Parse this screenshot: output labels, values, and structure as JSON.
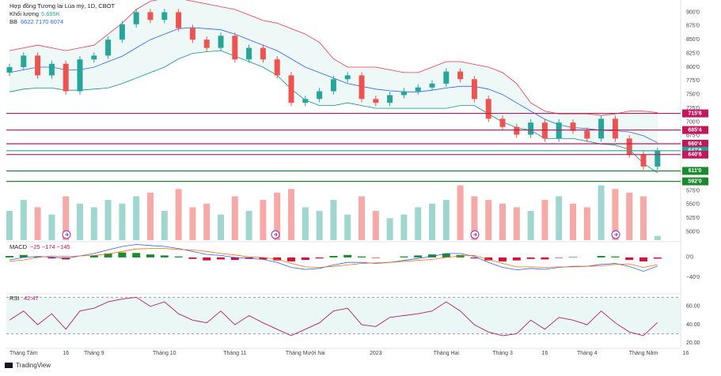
{
  "brand": "TradingView",
  "chart_data": [
    {
      "type": "candlestick",
      "title": "Hợp đồng Tương lai Lúa mỳ, 1D, CBOT",
      "bb_label": "BB",
      "bb_text": "6622 7170 6074",
      "up_color": "#26a69a",
      "down_color": "#ef5350",
      "categories": [
        null,
        "Tháng Tám",
        null,
        null,
        "16",
        null,
        "Tháng 9",
        null,
        null,
        null,
        null,
        "Tháng 10",
        null,
        null,
        null,
        null,
        "Tháng 11",
        null,
        null,
        null,
        null,
        "Tháng Mười hai",
        null,
        null,
        null,
        null,
        "2023",
        null,
        null,
        null,
        null,
        "Tháng Hai",
        null,
        null,
        null,
        "Tháng 3",
        null,
        null,
        "16",
        null,
        null,
        "Tháng 4",
        null,
        null,
        null,
        "Tháng Năm",
        null,
        null,
        "16",
        null
      ],
      "open": [
        790,
        800,
        821,
        785,
        806,
        756,
        814,
        821,
        850,
        878,
        900,
        886,
        900,
        871,
        850,
        835,
        857,
        814,
        835,
        814,
        785,
        735,
        742,
        756,
        778,
        785,
        742,
        735,
        749,
        756,
        763,
        770,
        792,
        778,
        742,
        706,
        691,
        677,
        699,
        670,
        699,
        684,
        670,
        706,
        670,
        641,
        619,
        null,
        null,
        null
      ],
      "high": [
        806,
        827,
        827,
        812,
        812,
        820,
        827,
        856,
        884,
        906,
        906,
        906,
        906,
        877,
        856,
        863,
        863,
        841,
        841,
        820,
        791,
        748,
        762,
        784,
        791,
        791,
        748,
        755,
        762,
        769,
        776,
        798,
        798,
        784,
        748,
        712,
        697,
        705,
        705,
        705,
        705,
        690,
        712,
        712,
        676,
        647,
        653.75,
        null,
        null,
        null
      ],
      "low": [
        784,
        794,
        779,
        779,
        750,
        750,
        808,
        815,
        844,
        872,
        880,
        880,
        865,
        844,
        829,
        829,
        808,
        808,
        808,
        779,
        729,
        729,
        736,
        750,
        772,
        736,
        729,
        729,
        743,
        750,
        757,
        764,
        772,
        736,
        700,
        685,
        671,
        671,
        664,
        664,
        678,
        664,
        664,
        664,
        635,
        613,
        613,
        null,
        null,
        null
      ],
      "close": [
        800,
        821,
        785,
        806,
        756,
        814,
        821,
        850,
        878,
        900,
        886,
        900,
        871,
        850,
        835,
        857,
        814,
        835,
        814,
        785,
        735,
        742,
        756,
        778,
        785,
        742,
        735,
        749,
        756,
        763,
        770,
        792,
        778,
        742,
        706,
        691,
        677,
        699,
        670,
        699,
        684,
        670,
        706,
        670,
        641,
        619,
        647.75,
        null,
        null,
        null
      ],
      "bb_upper": [
        830,
        835,
        840,
        835,
        830,
        835,
        840,
        860,
        880,
        905,
        920,
        925,
        925,
        920,
        915,
        910,
        905,
        895,
        885,
        880,
        870,
        860,
        845,
        815,
        800,
        800,
        800,
        795,
        790,
        790,
        800,
        810,
        810,
        805,
        800,
        790,
        770,
        735,
        720,
        715,
        715,
        715,
        712,
        715,
        720,
        720,
        717,
        null,
        null,
        null
      ],
      "bb_basis": [
        790,
        795,
        800,
        800,
        795,
        795,
        800,
        810,
        820,
        835,
        850,
        860,
        870,
        872,
        870,
        868,
        860,
        850,
        840,
        830,
        815,
        800,
        790,
        780,
        770,
        765,
        760,
        757,
        755,
        755,
        758,
        762,
        765,
        765,
        760,
        750,
        735,
        720,
        705,
        695,
        690,
        688,
        685,
        684,
        682,
        675,
        662.25,
        null,
        null,
        null
      ],
      "bb_lower": [
        755,
        760,
        762,
        762,
        758,
        758,
        760,
        762,
        770,
        780,
        790,
        800,
        815,
        825,
        828,
        830,
        820,
        810,
        800,
        785,
        760,
        740,
        730,
        730,
        735,
        730,
        725,
        725,
        725,
        725,
        725,
        725,
        730,
        730,
        715,
        700,
        690,
        685,
        670,
        670,
        670,
        665,
        660,
        658,
        650,
        625,
        607.5,
        null,
        null,
        null
      ],
      "bb_colors": {
        "upper": "#f23645",
        "basis": "#2962ff",
        "lower": "#089981",
        "fill": "#e3f4f1"
      },
      "ylim": [
        485,
        915
      ],
      "yticks": [
        {
          "value": 900,
          "label": "900'0"
        },
        {
          "value": 875,
          "label": "875'0"
        },
        {
          "value": 850,
          "label": "850'0"
        },
        {
          "value": 825,
          "label": "825'0"
        },
        {
          "value": 800,
          "label": "800'0"
        },
        {
          "value": 775,
          "label": "775'0"
        },
        {
          "value": 750,
          "label": "750'0"
        },
        {
          "value": 725,
          "label": "725'0"
        },
        {
          "value": 700,
          "label": "700'0"
        },
        {
          "value": 675,
          "label": "675'0"
        },
        {
          "value": 575,
          "label": "575'0"
        },
        {
          "value": 550,
          "label": "550'0"
        },
        {
          "value": 525,
          "label": "525'0"
        },
        {
          "value": 500,
          "label": "500'0"
        }
      ],
      "levels": [
        {
          "value": 715.75,
          "label": "715'6",
          "color": "#c2185b"
        },
        {
          "value": 685.5,
          "label": "685'4",
          "color": "#c2185b"
        },
        {
          "value": 660.5,
          "label": "660'4",
          "color": "#c2185b"
        },
        {
          "value": 647.75,
          "label": "647'6",
          "color": "#26a69a"
        },
        {
          "value": 640.75,
          "label": "640'6",
          "color": "#c2185b"
        },
        {
          "value": 611,
          "label": "611'0",
          "color": "#1b8a2e"
        },
        {
          "value": 592,
          "label": "592'0",
          "color": "#1b8a2e"
        }
      ]
    },
    {
      "type": "volume",
      "name": "Khối lượng",
      "values": [
        40,
        55,
        45,
        35,
        60,
        50,
        45,
        55,
        50,
        60,
        65,
        40,
        70,
        45,
        50,
        35,
        60,
        40,
        55,
        65,
        70,
        45,
        40,
        55,
        35,
        60,
        40,
        30,
        35,
        45,
        50,
        55,
        75,
        60,
        55,
        50,
        45,
        40,
        55,
        60,
        50,
        45,
        75,
        70,
        65,
        60,
        5.695,
        null,
        null,
        null
      ],
      "value_labels": [
        null,
        null,
        null,
        null,
        null,
        null,
        null,
        null,
        null,
        null,
        null,
        null,
        null,
        null,
        null,
        null,
        null,
        null,
        null,
        null,
        null,
        null,
        null,
        null,
        null,
        null,
        null,
        null,
        null,
        null,
        null,
        null,
        null,
        null,
        null,
        null,
        null,
        null,
        null,
        null,
        null,
        null,
        null,
        null,
        null,
        null,
        "5.695K",
        null,
        null,
        null
      ],
      "up_color": "#9fd6cf",
      "down_color": "#f7a9a7",
      "ylim": [
        0,
        80
      ]
    },
    {
      "type": "macd",
      "name": "MACD",
      "values_text": "−25 −174 −145",
      "histogram": [
        3,
        5,
        2,
        -2,
        -4,
        0,
        4,
        8,
        10,
        9,
        6,
        4,
        2,
        -3,
        -6,
        -4,
        -5,
        -3,
        -4,
        -6,
        -8,
        -5,
        -2,
        3,
        5,
        2,
        -1,
        0,
        2,
        4,
        6,
        8,
        5,
        -2,
        -6,
        -8,
        -6,
        -3,
        -4,
        -1,
        1,
        0,
        3,
        2,
        -5,
        -8,
        -2.5,
        null,
        null,
        null
      ],
      "macd": [
        -5,
        0,
        2,
        1,
        -2,
        3,
        8,
        15,
        22,
        26,
        24,
        22,
        18,
        12,
        6,
        4,
        0,
        -2,
        -4,
        -10,
        -20,
        -24,
        -22,
        -15,
        -10,
        -10,
        -12,
        -10,
        -6,
        -2,
        2,
        8,
        8,
        2,
        -10,
        -20,
        -25,
        -22,
        -24,
        -20,
        -18,
        -18,
        -14,
        -12,
        -18,
        -28,
        -17.4,
        null,
        null,
        null
      ],
      "signal": [
        -8,
        -5,
        0,
        3,
        2,
        3,
        4,
        7,
        12,
        17,
        18,
        18,
        16,
        15,
        12,
        8,
        5,
        1,
        0,
        -4,
        -12,
        -19,
        -20,
        -18,
        -15,
        -12,
        -11,
        -10,
        -8,
        -6,
        -4,
        0,
        3,
        4,
        -4,
        -12,
        -19,
        -19,
        -20,
        -19,
        -19,
        -18,
        -17,
        -14,
        -13,
        -20,
        -14.5,
        null,
        null,
        null
      ],
      "colors": {
        "up": "#1b8a2e",
        "down": "#d5103f",
        "macd": "#2962ff",
        "signal": "#ff6d00"
      },
      "ylim": [
        -70,
        30
      ],
      "yticks": [
        {
          "value": 0,
          "label": "0'0"
        },
        {
          "value": -40,
          "label": "−40'0"
        }
      ]
    },
    {
      "type": "rsi",
      "name": "RSI",
      "values": [
        45,
        55,
        40,
        52,
        35,
        55,
        58,
        65,
        68,
        70,
        60,
        65,
        52,
        45,
        42,
        55,
        40,
        50,
        42,
        35,
        28,
        35,
        42,
        55,
        58,
        40,
        38,
        48,
        50,
        52,
        55,
        65,
        55,
        40,
        32,
        28,
        30,
        45,
        35,
        48,
        45,
        40,
        55,
        42,
        32,
        28,
        42.47,
        null,
        null,
        null
      ],
      "color": "#b71c6b",
      "band": [
        30,
        70
      ],
      "ylim": [
        15,
        72
      ],
      "yticks": [
        {
          "value": 60,
          "label": "60.00"
        },
        {
          "value": 40,
          "label": "40.00"
        },
        {
          "value": 20,
          "label": "20.00"
        }
      ]
    }
  ]
}
